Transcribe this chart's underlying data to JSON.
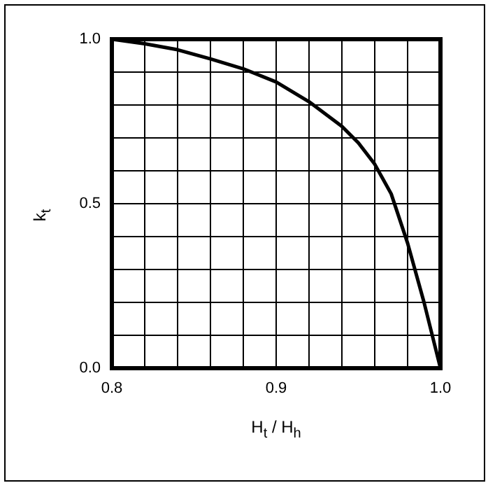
{
  "chart_data": {
    "type": "line",
    "xlabel": "H$_{t}$ / H$_{h}$",
    "ylabel": "k$_{t}$",
    "x": [
      0.8,
      0.82,
      0.84,
      0.86,
      0.88,
      0.9,
      0.92,
      0.94,
      0.95,
      0.96,
      0.97,
      0.98,
      0.99,
      1.0
    ],
    "series": [
      {
        "color": "#000000",
        "values": [
          1.0,
          0.986,
          0.968,
          0.94,
          0.91,
          0.87,
          0.81,
          0.735,
          0.685,
          0.62,
          0.53,
          0.38,
          0.2,
          0.0
        ]
      }
    ],
    "xlim": [
      0.8,
      1.0
    ],
    "ylim": [
      0,
      1
    ],
    "xticks": [
      {
        "value": 0.8,
        "label": "0.8"
      },
      {
        "value": 0.82,
        "label": null
      },
      {
        "value": 0.84,
        "label": null
      },
      {
        "value": 0.86,
        "label": null
      },
      {
        "value": 0.88,
        "label": null
      },
      0.9,
      {
        "value": 0.92,
        "label": null
      },
      {
        "value": 0.94,
        "label": null
      },
      {
        "value": 0.96,
        "label": null
      },
      {
        "value": 0.98,
        "label": null
      },
      {
        "value": 1.0,
        "label": "1.0"
      }
    ],
    "yticks": [
      {
        "value": 0,
        "label": "0.0"
      },
      {
        "value": 0.1,
        "label": null
      },
      {
        "value": 0.2,
        "label": null
      },
      {
        "value": 0.3,
        "label": null
      },
      {
        "value": 0.4,
        "label": null
      },
      0.5,
      {
        "value": 0.6,
        "label": null
      },
      {
        "value": 0.7,
        "label": null
      },
      {
        "value": 0.8,
        "label": null
      },
      {
        "value": 0.9,
        "label": null
      },
      {
        "value": 1,
        "label": "1.0"
      }
    ],
    "grid": true,
    "legend": false,
    "marker": "none",
    "line_style": "solid"
  }
}
